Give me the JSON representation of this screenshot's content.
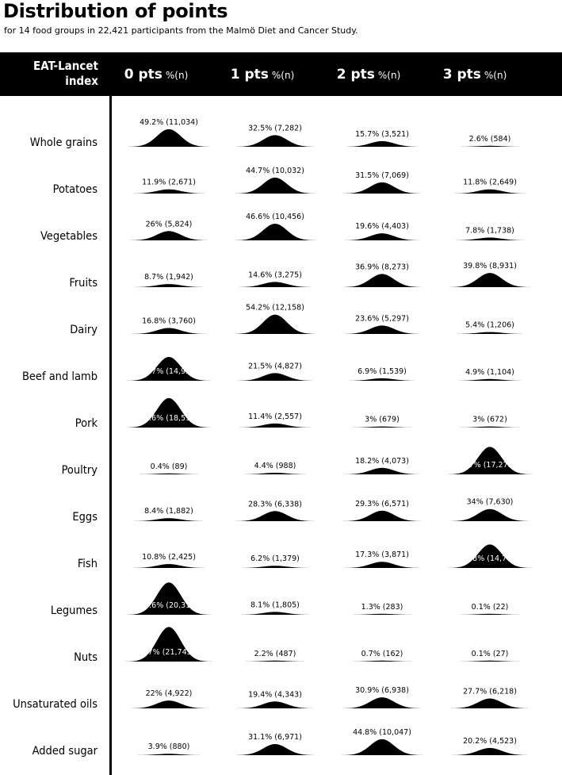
{
  "chart_data": {
    "type": "ridgeline",
    "title": "Distribution of points",
    "subtitle": "for 14 food groups in 22,421 participants from the Malmö Diet and Cancer Study.",
    "index_label": "EAT-Lancet index",
    "unit_label": "%(n)",
    "categories": [
      "0 pts",
      "1 pts",
      "2 pts",
      "3 pts"
    ],
    "rows": [
      {
        "name": "Whole grains",
        "pct": [
          "49.2%",
          "32.5%",
          "15.7%",
          "2.6%"
        ],
        "n": [
          "11,034",
          "7,282",
          "3,521",
          "584"
        ],
        "values": [
          49.2,
          32.5,
          15.7,
          2.6
        ]
      },
      {
        "name": "Potatoes",
        "pct": [
          "11.9%",
          "44.7%",
          "31.5%",
          "11.8%"
        ],
        "n": [
          "2,671",
          "10,032",
          "7,069",
          "2,649"
        ],
        "values": [
          11.9,
          44.7,
          31.5,
          11.8
        ]
      },
      {
        "name": "Vegetables",
        "pct": [
          "26%",
          "46.6%",
          "19.6%",
          "7.8%"
        ],
        "n": [
          "5,824",
          "10,456",
          "4,403",
          "1,738"
        ],
        "values": [
          26,
          46.6,
          19.6,
          7.8
        ]
      },
      {
        "name": "Fruits",
        "pct": [
          "8.7%",
          "14.6%",
          "36.9%",
          "39.8%"
        ],
        "n": [
          "1,942",
          "3,275",
          "8,273",
          "8,931"
        ],
        "values": [
          8.7,
          14.6,
          36.9,
          39.8
        ]
      },
      {
        "name": "Dairy",
        "pct": [
          "16.8%",
          "54.2%",
          "23.6%",
          "5.4%"
        ],
        "n": [
          "3,760",
          "12,158",
          "5,297",
          "1,206"
        ],
        "values": [
          16.8,
          54.2,
          23.6,
          5.4
        ]
      },
      {
        "name": "Beef and lamb",
        "pct": [
          "66.7%",
          "21.5%",
          "6.9%",
          "4.9%"
        ],
        "n": [
          "14,951",
          "4,827",
          "1,539",
          "1,104"
        ],
        "values": [
          66.7,
          21.5,
          6.9,
          4.9
        ]
      },
      {
        "name": "Pork",
        "pct": [
          "82.6%",
          "11.4%",
          "3%",
          "3%"
        ],
        "n": [
          "18,513",
          "2,557",
          "679",
          "672"
        ],
        "values": [
          82.6,
          11.4,
          3,
          3
        ]
      },
      {
        "name": "Poultry",
        "pct": [
          "0.4%",
          "4.4%",
          "18.2%",
          "77%"
        ],
        "n": [
          "89",
          "988",
          "4,073",
          "17,271"
        ],
        "values": [
          0.4,
          4.4,
          18.2,
          77
        ]
      },
      {
        "name": "Eggs",
        "pct": [
          "8.4%",
          "28.3%",
          "29.3%",
          "34%"
        ],
        "n": [
          "1,882",
          "6,338",
          "6,571",
          "7,630"
        ],
        "values": [
          8.4,
          28.3,
          29.3,
          34
        ]
      },
      {
        "name": "Fish",
        "pct": [
          "10.8%",
          "6.2%",
          "17.3%",
          "65.8%"
        ],
        "n": [
          "2,425",
          "1,379",
          "3,871",
          "14,746"
        ],
        "values": [
          10.8,
          6.2,
          17.3,
          65.8
        ]
      },
      {
        "name": "Legumes",
        "pct": [
          "90.6%",
          "8.1%",
          "1.3%",
          "0.1%"
        ],
        "n": [
          "20,311",
          "1,805",
          "283",
          "22"
        ],
        "values": [
          90.6,
          8.1,
          1.3,
          0.1
        ]
      },
      {
        "name": "Nuts",
        "pct": [
          "97%",
          "2.2%",
          "0.7%",
          "0.1%"
        ],
        "n": [
          "21,745",
          "487",
          "162",
          "27"
        ],
        "values": [
          97,
          2.2,
          0.7,
          0.1
        ]
      },
      {
        "name": "Unsaturated oils",
        "pct": [
          "22%",
          "19.4%",
          "30.9%",
          "27.7%"
        ],
        "n": [
          "4,922",
          "4,343",
          "6,938",
          "6,218"
        ],
        "values": [
          22,
          19.4,
          30.9,
          27.7
        ]
      },
      {
        "name": "Added sugar",
        "pct": [
          "3.9%",
          "31.1%",
          "44.8%",
          "20.2%"
        ],
        "n": [
          "880",
          "6,971",
          "10,047",
          "4,523"
        ],
        "values": [
          3.9,
          31.1,
          44.8,
          20.2
        ]
      }
    ],
    "colors": {
      "fill": "#000000",
      "header_bg": "#000000",
      "header_text": "#ffffff"
    }
  }
}
